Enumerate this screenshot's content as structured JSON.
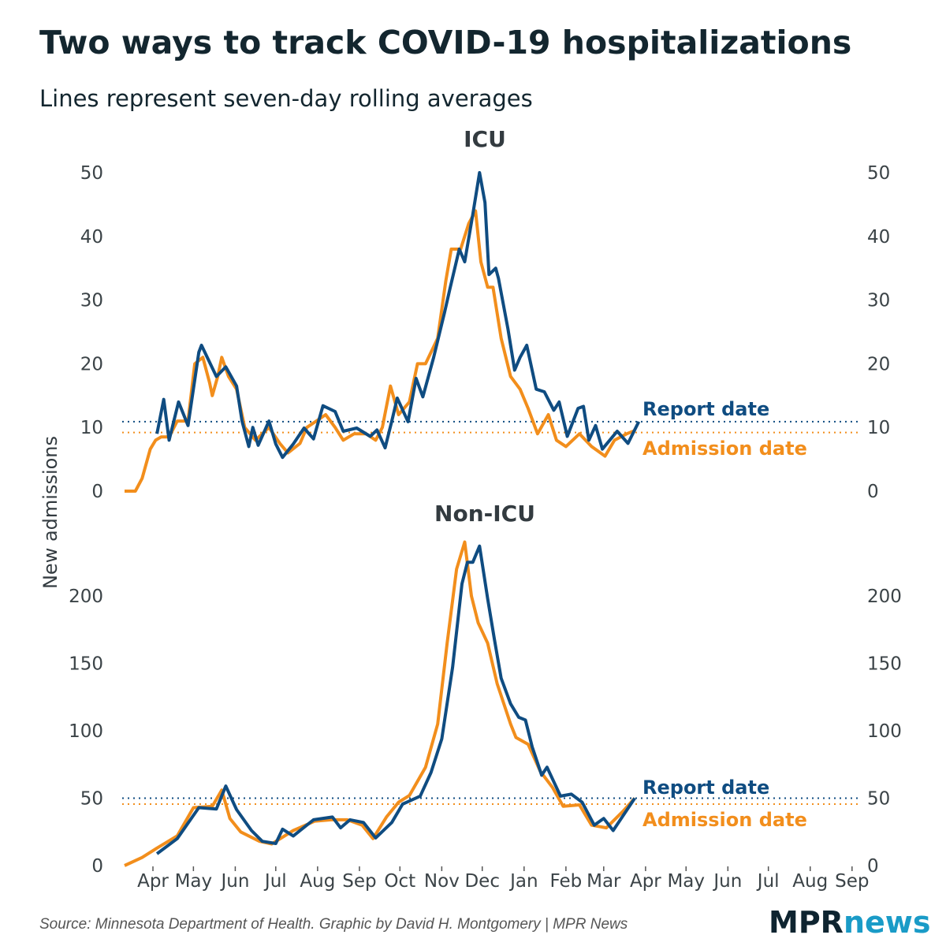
{
  "title": "Two ways to track COVID-19 hospitalizations",
  "subtitle": "Lines represent seven-day rolling averages",
  "y_axis_label": "New admissions",
  "source": "Source: Minnesota Department of Health. Graphic by David H. Montgomery | MPR News",
  "logo": {
    "part1": "MPR",
    "part2": "news"
  },
  "colors": {
    "report": "#0f4c81",
    "admission": "#f28e1c",
    "title": "#13262f",
    "logo_dark": "#0e2430",
    "logo_blue": "#1a9bc7"
  },
  "chart_data": [
    {
      "type": "line",
      "title": "ICU",
      "x_unit": "days since 2020-03-01",
      "xlabel": "",
      "ylabel": "New admissions",
      "ylim": [
        0,
        50
      ],
      "yticks": [
        0,
        10,
        20,
        30,
        40,
        50
      ],
      "yticks_labels": [
        "0",
        "10",
        "20",
        "30",
        "40",
        "50"
      ],
      "reference_lines": [
        {
          "series": "Report date",
          "value": 10.9
        },
        {
          "series": "Admission date",
          "value": 9.2
        }
      ],
      "series": [
        {
          "name": "Admission date",
          "label": "Admission date",
          "color": "#f28e1c",
          "points": [
            [
              10,
              0
            ],
            [
              18,
              0
            ],
            [
              23,
              2
            ],
            [
              29,
              6.6
            ],
            [
              33,
              8
            ],
            [
              37,
              8.5
            ],
            [
              43,
              8.5
            ],
            [
              49,
              11
            ],
            [
              57,
              11
            ],
            [
              62,
              20
            ],
            [
              68,
              21
            ],
            [
              73,
              17
            ],
            [
              75,
              15
            ],
            [
              79,
              18
            ],
            [
              82,
              21
            ],
            [
              87,
              18
            ],
            [
              93,
              16
            ],
            [
              99,
              10
            ],
            [
              107,
              8
            ],
            [
              117,
              10
            ],
            [
              125,
              7.5
            ],
            [
              131,
              6
            ],
            [
              140,
              7.5
            ],
            [
              145,
              10
            ],
            [
              152,
              11
            ],
            [
              159,
              12
            ],
            [
              166,
              10
            ],
            [
              172,
              8
            ],
            [
              180,
              9
            ],
            [
              189,
              9
            ],
            [
              196,
              8
            ],
            [
              201,
              10
            ],
            [
              207,
              16.5
            ],
            [
              213,
              12
            ],
            [
              221,
              14
            ],
            [
              227,
              20
            ],
            [
              233,
              20
            ],
            [
              242,
              24
            ],
            [
              248,
              33
            ],
            [
              252,
              38
            ],
            [
              259,
              38
            ],
            [
              265,
              42
            ],
            [
              270,
              44
            ],
            [
              274,
              36
            ],
            [
              279,
              32
            ],
            [
              283,
              32
            ],
            [
              289,
              24
            ],
            [
              296,
              18
            ],
            [
              303,
              16
            ],
            [
              309,
              13
            ],
            [
              316,
              9
            ],
            [
              324,
              12
            ],
            [
              330,
              8
            ],
            [
              337,
              7
            ],
            [
              347,
              9
            ],
            [
              356,
              7
            ],
            [
              366,
              5.5
            ],
            [
              373,
              8
            ],
            [
              382,
              9
            ],
            [
              388,
              9.5
            ]
          ]
        },
        {
          "name": "Report date",
          "label": "Report date",
          "color": "#0f4c81",
          "points": [
            [
              34,
              9
            ],
            [
              39,
              14.4
            ],
            [
              43,
              8
            ],
            [
              50,
              14
            ],
            [
              57,
              10.3
            ],
            [
              65,
              21.8
            ],
            [
              67,
              22.9
            ],
            [
              78,
              18
            ],
            [
              85,
              19.5
            ],
            [
              93,
              16.5
            ],
            [
              97,
              11
            ],
            [
              102,
              7
            ],
            [
              105,
              10
            ],
            [
              109,
              7.2
            ],
            [
              117,
              11
            ],
            [
              122,
              7.4
            ],
            [
              127,
              5.3
            ],
            [
              135,
              7.4
            ],
            [
              143,
              9.9
            ],
            [
              150,
              8.2
            ],
            [
              157,
              13.4
            ],
            [
              166,
              12.5
            ],
            [
              172,
              9.4
            ],
            [
              182,
              9.9
            ],
            [
              192,
              8.6
            ],
            [
              197,
              9.6
            ],
            [
              203,
              6.8
            ],
            [
              208,
              11
            ],
            [
              212,
              14.6
            ],
            [
              220,
              10.9
            ],
            [
              226,
              17.7
            ],
            [
              231,
              14.8
            ],
            [
              239,
              21
            ],
            [
              247,
              28
            ],
            [
              251,
              31.7
            ],
            [
              258,
              38
            ],
            [
              262,
              36
            ],
            [
              268,
              43.4
            ],
            [
              273,
              50
            ],
            [
              277,
              45.3
            ],
            [
              280,
              34
            ],
            [
              285,
              35
            ],
            [
              287,
              33.4
            ],
            [
              294,
              25.5
            ],
            [
              299,
              19
            ],
            [
              303,
              21
            ],
            [
              308,
              22.9
            ],
            [
              315,
              16
            ],
            [
              321,
              15.6
            ],
            [
              328,
              12.7
            ],
            [
              332,
              14
            ],
            [
              338,
              8.6
            ],
            [
              346,
              13
            ],
            [
              350,
              13.3
            ],
            [
              354,
              8
            ],
            [
              359,
              10.3
            ],
            [
              364,
              6.6
            ],
            [
              375,
              9.4
            ],
            [
              383,
              7.5
            ],
            [
              391,
              10.9
            ]
          ]
        }
      ]
    },
    {
      "type": "line",
      "title": "Non-ICU",
      "x_unit": "days since 2020-03-01",
      "xlabel": "",
      "ylabel": "New admissions",
      "ylim": [
        0,
        240
      ],
      "yticks": [
        0,
        50,
        100,
        150,
        200
      ],
      "yticks_labels": [
        "0",
        "50",
        "100",
        "150",
        "200"
      ],
      "xticks": [
        31,
        61,
        92,
        122,
        153,
        184,
        214,
        245,
        275,
        306,
        337,
        365,
        396,
        426,
        457,
        487,
        518,
        549
      ],
      "xtick_labels": [
        "Apr",
        "May",
        "Jun",
        "Jul",
        "Aug",
        "Sep",
        "Oct",
        "Nov",
        "Dec",
        "Jan",
        "Feb",
        "Mar",
        "Apr",
        "May",
        "Jun",
        "Jul",
        "Aug",
        "Sep"
      ],
      "reference_lines": [
        {
          "series": "Report date",
          "value": 50
        },
        {
          "series": "Admission date",
          "value": 45.6
        }
      ],
      "series": [
        {
          "name": "Admission date",
          "label": "Admission date",
          "color": "#f28e1c",
          "points": [
            [
              10,
              0
            ],
            [
              23,
              6
            ],
            [
              34,
              13
            ],
            [
              49,
              22
            ],
            [
              61,
              43
            ],
            [
              75,
              44
            ],
            [
              82,
              56
            ],
            [
              88,
              35
            ],
            [
              96,
              25
            ],
            [
              110,
              18
            ],
            [
              119,
              16
            ],
            [
              135,
              26
            ],
            [
              151,
              33
            ],
            [
              163,
              34
            ],
            [
              175,
              34
            ],
            [
              186,
              30
            ],
            [
              194,
              20
            ],
            [
              204,
              36
            ],
            [
              213,
              47
            ],
            [
              221,
              52
            ],
            [
              233,
              73
            ],
            [
              242,
              105
            ],
            [
              249,
              165
            ],
            [
              256,
              220
            ],
            [
              262,
              240
            ],
            [
              267,
              200
            ],
            [
              272,
              180
            ],
            [
              279,
              165
            ],
            [
              286,
              135
            ],
            [
              296,
              105
            ],
            [
              300,
              95
            ],
            [
              309,
              90
            ],
            [
              318,
              70
            ],
            [
              327,
              58
            ],
            [
              335,
              44
            ],
            [
              347,
              45
            ],
            [
              356,
              30
            ],
            [
              367,
              28
            ],
            [
              379,
              40
            ],
            [
              388,
              50
            ]
          ]
        },
        {
          "name": "Report date",
          "label": "Report date",
          "color": "#0f4c81",
          "points": [
            [
              34,
              8.8
            ],
            [
              49,
              20
            ],
            [
              65,
              43
            ],
            [
              78,
              42
            ],
            [
              85,
              59
            ],
            [
              93,
              41.5
            ],
            [
              104,
              26
            ],
            [
              112,
              18
            ],
            [
              122,
              16.4
            ],
            [
              127,
              27
            ],
            [
              135,
              22
            ],
            [
              150,
              34
            ],
            [
              164,
              36
            ],
            [
              170,
              28
            ],
            [
              177,
              34
            ],
            [
              187,
              32
            ],
            [
              196,
              20.5
            ],
            [
              208,
              32
            ],
            [
              216,
              45.6
            ],
            [
              229,
              51.5
            ],
            [
              237,
              69
            ],
            [
              245,
              94
            ],
            [
              253,
              147
            ],
            [
              260,
              209
            ],
            [
              264,
              225
            ],
            [
              268,
              225
            ],
            [
              273,
              237
            ],
            [
              279,
              198
            ],
            [
              284,
              168
            ],
            [
              289,
              139
            ],
            [
              296,
              120
            ],
            [
              302,
              110
            ],
            [
              307,
              108
            ],
            [
              312,
              88
            ],
            [
              319,
              67
            ],
            [
              323,
              73
            ],
            [
              333,
              51.5
            ],
            [
              341,
              53
            ],
            [
              349,
              47
            ],
            [
              358,
              30
            ],
            [
              365,
              35
            ],
            [
              372,
              26
            ],
            [
              380,
              38
            ],
            [
              388,
              50
            ]
          ]
        }
      ]
    }
  ]
}
